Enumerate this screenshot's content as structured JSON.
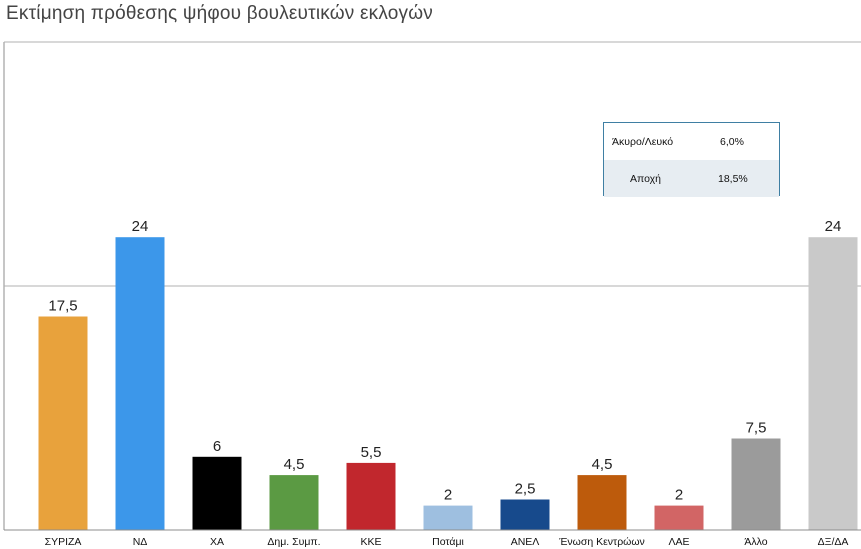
{
  "chart_data": {
    "type": "bar",
    "title": "Εκτίμηση πρόθεσης ψήφου βουλευτικών εκλογών",
    "categories": [
      "ΣΥΡΙΖΑ",
      "ΝΔ",
      "ΧΑ",
      "Δημ. Συμπ.",
      "ΚΚΕ",
      "Ποτάμι",
      "ΑΝΕΛ",
      "Ένωση Κεντρώων",
      "ΛΑΕ",
      "Άλλο",
      "ΔΞ/ΔΑ"
    ],
    "values": [
      17.5,
      24,
      6,
      4.5,
      5.5,
      2,
      2.5,
      4.5,
      2,
      7.5,
      24
    ],
    "value_labels": [
      "17,5",
      "24",
      "6",
      "4,5",
      "5,5",
      "2",
      "2,5",
      "4,5",
      "2",
      "7,5",
      "24"
    ],
    "colors": [
      "#e8a23c",
      "#3c97ea",
      "#000000",
      "#5b9a43",
      "#c1272d",
      "#9ebfe0",
      "#174a8c",
      "#bd5b0c",
      "#d26565",
      "#9b9b9b",
      "#c9c9c9"
    ],
    "xlabel": "",
    "ylabel": "",
    "ylim": [
      0,
      40
    ],
    "gridlines": [
      20,
      40
    ],
    "grid": true,
    "legend": "none"
  },
  "info_box": {
    "rows": [
      {
        "label": "Άκυρο/Λευκό",
        "value": "6,0%"
      },
      {
        "label": "Αποχή",
        "value": "18,5%"
      }
    ]
  }
}
